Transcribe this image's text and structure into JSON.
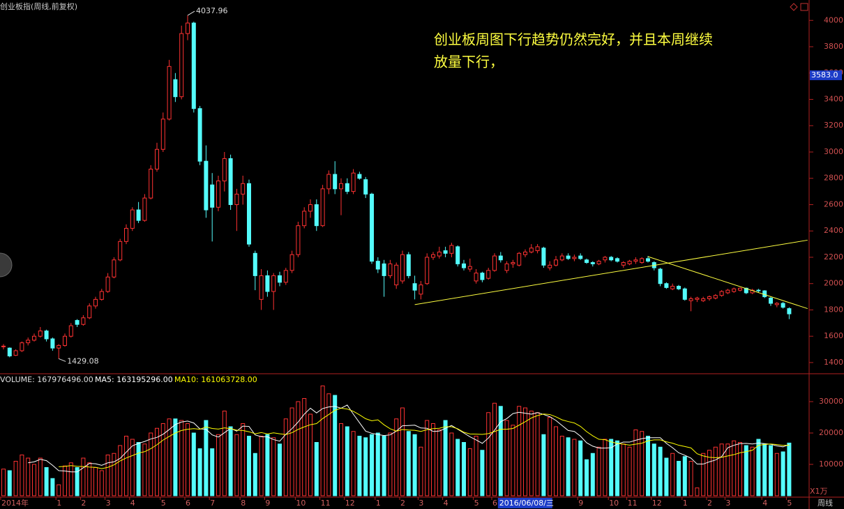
{
  "chart_data": {
    "type": "candlestick",
    "title": "创业板指(周线,前复权)",
    "annotation_lines": [
      "创业板周图下行趋势仍然完好，并且本周继续",
      "放量下行，"
    ],
    "categories": [
      "2014年",
      null,
      null,
      null,
      null,
      null,
      null,
      null,
      null,
      "1",
      null,
      null,
      null,
      "2",
      null,
      null,
      null,
      "3",
      null,
      null,
      null,
      "4",
      null,
      null,
      null,
      null,
      "5",
      null,
      null,
      null,
      "6",
      null,
      null,
      null,
      "7",
      null,
      null,
      null,
      null,
      "8",
      null,
      null,
      null,
      "9",
      null,
      null,
      null,
      null,
      "10",
      null,
      null,
      null,
      "11",
      null,
      null,
      null,
      "12",
      null,
      null,
      null,
      null,
      "1",
      null,
      null,
      null,
      "2",
      null,
      null,
      "3",
      null,
      null,
      null,
      "4",
      null,
      null,
      null,
      null,
      "5",
      null,
      null,
      "6",
      "2016/06/08/三",
      null,
      null,
      null,
      null,
      null,
      null,
      null,
      null,
      null,
      null,
      null,
      null,
      "9",
      null,
      null,
      null,
      null,
      "10",
      null,
      null,
      "11",
      null,
      null,
      null,
      "12",
      null,
      null,
      null,
      null,
      "1",
      null,
      null,
      null,
      "2",
      null,
      null,
      "3",
      null,
      null,
      null,
      null,
      null,
      "4",
      null,
      null,
      null,
      "5"
    ],
    "cursor_index": 81,
    "open": [
      1520,
      1510,
      1455,
      1490,
      1550,
      1570,
      1600,
      1640,
      1580,
      1510,
      1530,
      1600,
      1720,
      1690,
      1740,
      1830,
      1880,
      1940,
      2050,
      2180,
      2320,
      2420,
      2560,
      2480,
      2650,
      2870,
      3020,
      3250,
      3550,
      3420,
      3900,
      3980,
      3330,
      2930,
      2750,
      2580,
      2780,
      2950,
      2600,
      2680,
      2760,
      2230,
      1880,
      2060,
      1940,
      2060,
      2010,
      2100,
      2220,
      2440,
      2550,
      2600,
      2440,
      2720,
      2830,
      2720,
      2760,
      2700,
      2830,
      2790,
      2680,
      2170,
      2150,
      2060,
      1990,
      2020,
      2220,
      2000,
      1920,
      2000,
      2200,
      2210,
      2250,
      2230,
      2280,
      2150,
      2110,
      2020,
      2080,
      2040,
      2100,
      2210,
      2100,
      2150,
      2140,
      2220,
      2240,
      2250,
      2270,
      2120,
      2140,
      2180,
      2210,
      2190,
      2210,
      2180,
      2160,
      2150,
      2180,
      2200,
      2190,
      2140,
      2150,
      2170,
      2160,
      2190,
      2160,
      2110,
      2000,
      1960,
      1980,
      1960,
      1870,
      1880,
      1870,
      1885,
      1890,
      1910,
      1930,
      1940,
      1950,
      1965,
      1930,
      1950,
      1945,
      1890,
      1840,
      1850,
      1810
    ],
    "high": [
      1540,
      1515,
      1500,
      1560,
      1590,
      1620,
      1670,
      1650,
      1590,
      1540,
      1620,
      1700,
      1730,
      1760,
      1850,
      1900,
      1960,
      2080,
      2200,
      2340,
      2450,
      2580,
      2620,
      2680,
      2900,
      3070,
      3300,
      3700,
      3600,
      3960,
      4037.96,
      3990,
      3350,
      3050,
      2840,
      2820,
      3000,
      2980,
      2720,
      2820,
      2790,
      2250,
      2110,
      2100,
      2080,
      2090,
      2120,
      2250,
      2470,
      2580,
      2640,
      2640,
      2750,
      2860,
      2930,
      2800,
      2800,
      2870,
      2850,
      2810,
      2690,
      2200,
      2180,
      2180,
      2160,
      2250,
      2240,
      2060,
      2020,
      2230,
      2240,
      2280,
      2280,
      2310,
      2290,
      2180,
      2190,
      2110,
      2090,
      2120,
      2230,
      2240,
      2170,
      2180,
      2240,
      2260,
      2300,
      2300,
      2280,
      2170,
      2210,
      2230,
      2230,
      2220,
      2230,
      2190,
      2170,
      2180,
      2210,
      2210,
      2200,
      2170,
      2180,
      2200,
      2200,
      2210,
      2170,
      2120,
      2010,
      2000,
      1990,
      1970,
      1900,
      1900,
      1900,
      1910,
      1920,
      1950,
      1960,
      1970,
      1970,
      1970,
      1960,
      1960,
      1950,
      1900,
      1860,
      1860,
      1820
    ],
    "low": [
      1500,
      1440,
      1450,
      1480,
      1530,
      1560,
      1590,
      1560,
      1490,
      1429.08,
      1520,
      1590,
      1670,
      1680,
      1730,
      1810,
      1870,
      1930,
      2040,
      2170,
      2300,
      2400,
      2460,
      2470,
      2640,
      2850,
      3000,
      3240,
      3380,
      3400,
      3850,
      3300,
      2900,
      2500,
      2320,
      2550,
      2700,
      2560,
      2400,
      2600,
      2280,
      1950,
      1800,
      1900,
      1800,
      1980,
      1990,
      2080,
      2200,
      2420,
      2500,
      2400,
      2430,
      2680,
      2680,
      2520,
      2680,
      2680,
      2790,
      2650,
      2150,
      2080,
      1900,
      2040,
      1960,
      2000,
      2040,
      1880,
      1880,
      1990,
      2180,
      2190,
      2200,
      2200,
      2130,
      2100,
      2090,
      2000,
      2010,
      2030,
      2090,
      2160,
      2080,
      2120,
      2130,
      2200,
      2230,
      2230,
      2120,
      2100,
      2130,
      2170,
      2180,
      2170,
      2180,
      2150,
      2130,
      2140,
      2160,
      2170,
      2160,
      2120,
      2140,
      2150,
      2150,
      2160,
      2100,
      1980,
      1960,
      1950,
      1950,
      1870,
      1790,
      1860,
      1860,
      1870,
      1880,
      1900,
      1920,
      1930,
      1940,
      1920,
      1920,
      1930,
      1890,
      1830,
      1820,
      1810,
      1730
    ],
    "close": [
      1525,
      1450,
      1490,
      1550,
      1570,
      1600,
      1640,
      1580,
      1510,
      1530,
      1600,
      1680,
      1690,
      1740,
      1830,
      1880,
      1940,
      2050,
      2180,
      2320,
      2420,
      2560,
      2480,
      2650,
      2870,
      3020,
      3250,
      3650,
      3420,
      3900,
      3980,
      3330,
      2930,
      2560,
      2580,
      2780,
      2950,
      2600,
      2680,
      2760,
      2300,
      2060,
      2060,
      1940,
      2060,
      2010,
      2100,
      2220,
      2440,
      2550,
      2600,
      2440,
      2720,
      2830,
      2720,
      2760,
      2700,
      2840,
      2800,
      2680,
      2170,
      2110,
      2060,
      2150,
      2140,
      2220,
      2060,
      1950,
      1990,
      2200,
      2220,
      2240,
      2230,
      2290,
      2150,
      2120,
      2130,
      2080,
      2030,
      2100,
      2210,
      2180,
      2150,
      2160,
      2230,
      2240,
      2270,
      2280,
      2140,
      2140,
      2180,
      2210,
      2190,
      2200,
      2190,
      2160,
      2150,
      2170,
      2200,
      2180,
      2170,
      2160,
      2170,
      2180,
      2190,
      2170,
      2120,
      2000,
      1970,
      1980,
      1960,
      1880,
      1885,
      1890,
      1885,
      1900,
      1910,
      1940,
      1950,
      1960,
      1965,
      1930,
      1950,
      1945,
      1900,
      1850,
      1850,
      1820,
      1770
    ],
    "up_color": "#ff3232",
    "down_color": "#54fcfc",
    "ylim": [
      1315,
      4155
    ],
    "yticks": [
      1400,
      1600,
      1800,
      2000,
      2200,
      2400,
      2600,
      2800,
      3000,
      3200,
      3400,
      3600,
      3800,
      4000
    ],
    "cursor_price": {
      "value": 3583,
      "label": "3583.0"
    },
    "trendlines": [
      {
        "x": [
          67,
          131
        ],
        "y": [
          1840,
          2330
        ],
        "color": "#ffff40"
      },
      {
        "x": [
          105,
          131
        ],
        "y": [
          2205,
          1810
        ],
        "color": "#ffff40"
      }
    ],
    "volume_label": "VOLUME: 167976496.00",
    "volume": [
      8500,
      8000,
      11000,
      13000,
      12000,
      10000,
      12000,
      9000,
      5500,
      3500,
      9500,
      10500,
      9000,
      12000,
      10500,
      9000,
      8000,
      13000,
      13500,
      16000,
      19000,
      18000,
      17000,
      16500,
      20000,
      21500,
      23000,
      24500,
      24500,
      24000,
      23000,
      20000,
      15000,
      24000,
      15000,
      19500,
      27000,
      22000,
      19500,
      23000,
      19000,
      13500,
      19000,
      19500,
      18500,
      16500,
      24500,
      28000,
      30000,
      31000,
      26000,
      17000,
      35000,
      32500,
      32000,
      23000,
      22000,
      20500,
      19000,
      18500,
      19500,
      20000,
      19000,
      20000,
      24500,
      28000,
      20500,
      19500,
      15500,
      24000,
      23000,
      21000,
      24000,
      20000,
      18000,
      17000,
      15000,
      19000,
      14500,
      26500,
      29500,
      28500,
      24000,
      22500,
      28500,
      28000,
      27000,
      26500,
      19500,
      25000,
      22000,
      19000,
      18500,
      18000,
      17500,
      11500,
      13500,
      15500,
      18000,
      18000,
      17500,
      16500,
      15500,
      21000,
      20500,
      19000,
      16500,
      15500,
      12000,
      13500,
      11000,
      12500,
      11000,
      2500,
      13500,
      14500,
      15500,
      16500,
      16500,
      17500,
      17000,
      16000,
      15500,
      18000,
      16500,
      16000,
      13500,
      14000,
      16798
    ],
    "volume_ma": [
      {
        "label": "MA5: 163195296.00",
        "color": "#ffffff",
        "values": [
          null,
          null,
          null,
          null,
          10500,
          10800,
          11600,
          11200,
          9700,
          8000,
          7900,
          7600,
          7600,
          8900,
          10300,
          10200,
          9700,
          10500,
          10800,
          11900,
          13900,
          15900,
          16700,
          17300,
          18100,
          18600,
          19600,
          21100,
          22700,
          23500,
          23800,
          23200,
          21300,
          21200,
          19400,
          18700,
          20100,
          21500,
          20600,
          22200,
          22100,
          19400,
          18800,
          18800,
          17900,
          17400,
          19600,
          21400,
          23500,
          26000,
          27900,
          26400,
          27800,
          28300,
          28500,
          27900,
          28900,
          26000,
          23300,
          20600,
          19900,
          19500,
          19200,
          19400,
          20600,
          22300,
          22400,
          22500,
          21600,
          21500,
          20500,
          20600,
          21500,
          22400,
          21200,
          20000,
          18800,
          17800,
          16700,
          18400,
          20900,
          23600,
          24600,
          26200,
          26600,
          26300,
          26000,
          26500,
          25900,
          25200,
          24000,
          22400,
          20800,
          20500,
          19000,
          16900,
          15800,
          15200,
          15200,
          15300,
          16500,
          17100,
          17100,
          17700,
          18200,
          18500,
          18500,
          18500,
          16700,
          15300,
          13700,
          12900,
          12000,
          10100,
          10100,
          10800,
          11400,
          12500,
          15300,
          16100,
          16600,
          16700,
          16500,
          16800,
          16600,
          16400,
          15900,
          15600,
          16320
        ]
      },
      {
        "label": "MA10: 161063728.00",
        "color": "#ffff00",
        "values": [
          null,
          null,
          null,
          null,
          null,
          null,
          null,
          null,
          null,
          9250,
          9350,
          9600,
          9400,
          9300,
          9150,
          9050,
          8650,
          9050,
          9850,
          11100,
          12050,
          12800,
          13600,
          14050,
          15000,
          16250,
          17750,
          18900,
          20000,
          20800,
          21200,
          21400,
          21200,
          21950,
          21450,
          21250,
          21650,
          21400,
          20900,
          20800,
          20400,
          19750,
          20150,
          19700,
          20050,
          19750,
          19500,
          20100,
          21150,
          21950,
          22650,
          23000,
          24600,
          25900,
          27250,
          27900,
          27650,
          26900,
          25800,
          24550,
          23900,
          24200,
          22600,
          21350,
          20600,
          21100,
          20950,
          20850,
          20500,
          21050,
          21400,
          21500,
          22000,
          22000,
          21350,
          20250,
          19700,
          19650,
          19550,
          19800,
          20450,
          21200,
          21200,
          21450,
          22500,
          23600,
          24800,
          25550,
          26050,
          25900,
          25150,
          24200,
          23650,
          23200,
          22100,
          20450,
          19100,
          18000,
          17850,
          17150,
          16700,
          16450,
          16150,
          16450,
          16750,
          17500,
          17800,
          17800,
          17200,
          16750,
          16100,
          15700,
          15250,
          13400,
          12700,
          12250,
          12150,
          12250,
          12700,
          13100,
          13700,
          14050,
          14500,
          16050,
          16350,
          16500,
          16300,
          16050,
          16106
        ]
      }
    ],
    "volume_ylim": [
      0,
      38000
    ],
    "volume_yticks": [
      10000,
      20000,
      30000
    ],
    "volume_unit": "X1万",
    "period_label": "周线"
  }
}
